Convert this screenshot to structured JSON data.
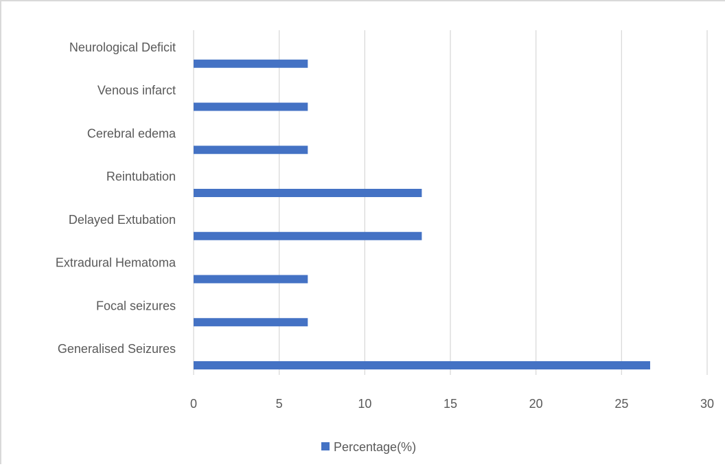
{
  "chart_data": {
    "type": "bar",
    "orientation": "horizontal",
    "categories": [
      "Neurological Deficit",
      "Venous infarct",
      "Cerebral edema",
      "Reintubation",
      "Delayed Extubation",
      "Extradural Hematoma",
      "Focal seizures",
      "Generalised Seizures"
    ],
    "series": [
      {
        "name": "Percentage(%)",
        "values": [
          6.67,
          6.67,
          6.67,
          13.33,
          13.33,
          6.67,
          6.67,
          26.67
        ],
        "color": "#4472c4"
      }
    ],
    "xlim": [
      0,
      30
    ],
    "xticks": [
      "0",
      "5",
      "10",
      "15",
      "20",
      "25",
      "30"
    ],
    "grid": true,
    "legend": "bottom"
  }
}
